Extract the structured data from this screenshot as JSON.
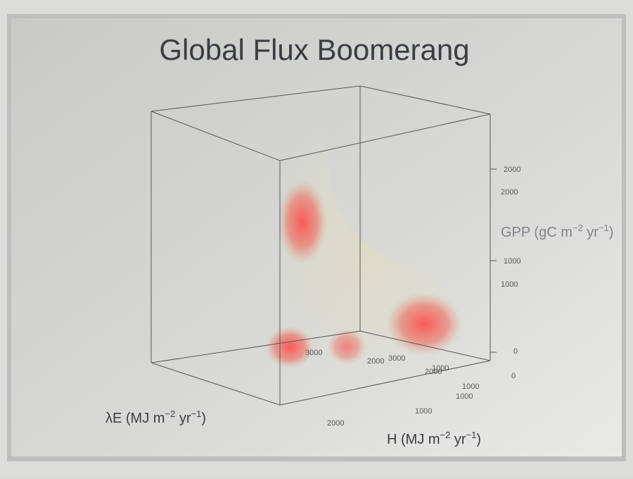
{
  "title": "Global Flux Boomerang",
  "axes": {
    "gpp": {
      "label": {
        "text": "GPP (gC m",
        "sup1": "−2",
        "mid": " yr",
        "sup2": "−1",
        "end": ")"
      },
      "ticks": [
        "2000",
        "2000",
        "1000",
        "1000",
        "0",
        "0"
      ]
    },
    "le": {
      "label": {
        "text": "λE (MJ m",
        "sup1": "−2",
        "mid": " yr",
        "sup2": "−1",
        "end": ")"
      },
      "ticks": [
        "3000",
        "2000"
      ]
    },
    "h": {
      "label": {
        "text": "H (MJ m",
        "sup1": "−2",
        "mid": " yr",
        "sup2": "−1",
        "end": ")"
      },
      "ticks": [
        "3000",
        "2000",
        "1000",
        "1000",
        "1000",
        "1000",
        "2000"
      ]
    }
  }
}
